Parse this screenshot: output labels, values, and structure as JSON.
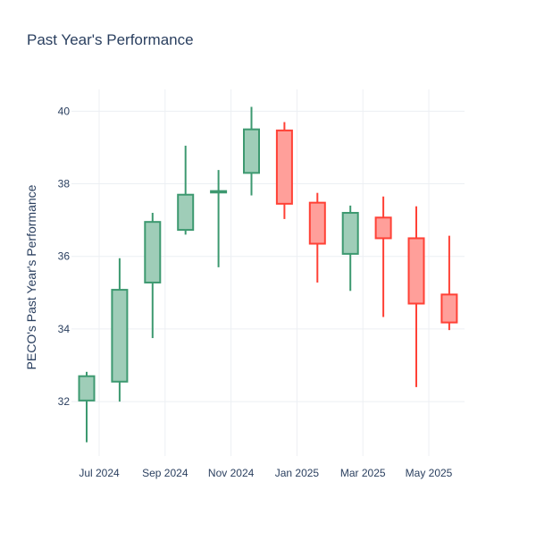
{
  "chart_data": {
    "type": "candlestick",
    "title": "Past Year's Performance",
    "xlabel": "",
    "ylabel": "PECO's Past Year's Performance",
    "ylim": [
      30.5,
      40.6
    ],
    "y_ticks": [
      32,
      34,
      36,
      38,
      40
    ],
    "x_ticks": [
      "Jul 2024",
      "Sep 2024",
      "Nov 2024",
      "Jan 2025",
      "Mar 2025",
      "May 2025"
    ],
    "grid": true,
    "increasing_color": "#3d9970",
    "increasing_fill": "#9fcdb8",
    "decreasing_color": "#ff4136",
    "decreasing_fill": "#ff9f9a",
    "candles": [
      {
        "month": "Jun 2024",
        "open": 32.03,
        "high": 32.82,
        "low": 30.88,
        "close": 32.7
      },
      {
        "month": "Jul 2024",
        "open": 32.55,
        "high": 35.95,
        "low": 32.0,
        "close": 35.08
      },
      {
        "month": "Aug 2024",
        "open": 35.28,
        "high": 37.2,
        "low": 33.75,
        "close": 36.95
      },
      {
        "month": "Sep 2024",
        "open": 36.73,
        "high": 39.05,
        "low": 36.6,
        "close": 37.7
      },
      {
        "month": "Oct 2024",
        "open": 37.76,
        "high": 38.38,
        "low": 35.7,
        "close": 37.8
      },
      {
        "month": "Nov 2024",
        "open": 38.3,
        "high": 40.12,
        "low": 37.68,
        "close": 39.5
      },
      {
        "month": "Dec 2024",
        "open": 39.47,
        "high": 39.7,
        "low": 37.03,
        "close": 37.45
      },
      {
        "month": "Jan 2025",
        "open": 37.48,
        "high": 37.75,
        "low": 35.28,
        "close": 36.35
      },
      {
        "month": "Feb 2025",
        "open": 36.07,
        "high": 37.4,
        "low": 35.05,
        "close": 37.2
      },
      {
        "month": "Mar 2025",
        "open": 37.07,
        "high": 37.65,
        "low": 34.33,
        "close": 36.5
      },
      {
        "month": "Apr 2025",
        "open": 36.5,
        "high": 37.38,
        "low": 32.4,
        "close": 34.7
      },
      {
        "month": "May 2025",
        "open": 34.95,
        "high": 36.57,
        "low": 33.97,
        "close": 34.18
      }
    ]
  }
}
